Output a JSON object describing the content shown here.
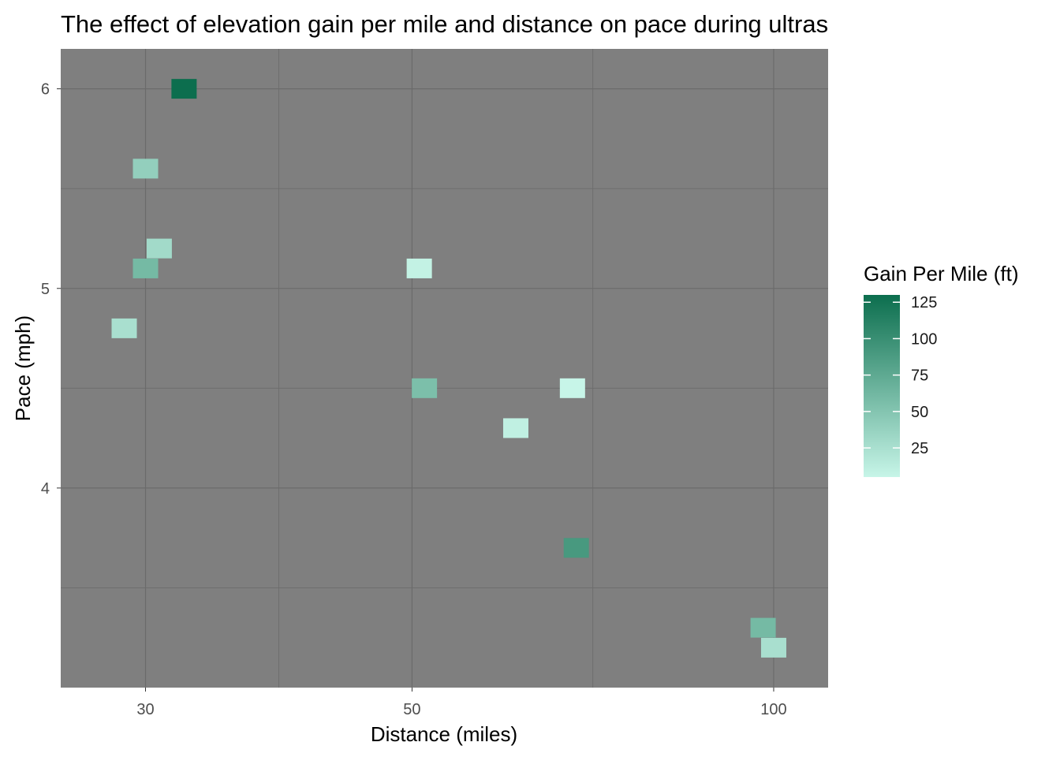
{
  "chart_data": {
    "type": "heatmap",
    "title": "The effect of elevation gain per mile and distance on pace during ultras",
    "xlabel": "Distance (miles)",
    "ylabel": "Pace (mph)",
    "x_scale": "log",
    "xlim": [
      25.5,
      111
    ],
    "ylim": [
      3.0,
      6.2
    ],
    "x_ticks": [
      30,
      50,
      100
    ],
    "x_tick_labels": [
      "30",
      "50",
      "100"
    ],
    "y_ticks": [
      4,
      5,
      6
    ],
    "y_tick_labels": [
      "4",
      "5",
      "6"
    ],
    "grid": true,
    "panel_background": "#7f7f7f",
    "legend": {
      "title": "Gain Per Mile (ft)",
      "position": "right",
      "range": [
        5,
        130
      ],
      "breaks": [
        25,
        50,
        75,
        100,
        125
      ],
      "labels": [
        "25",
        "50",
        "75",
        "100",
        "125"
      ],
      "color_low": "#c7f5e8",
      "color_high": "#0c6e4e"
    },
    "points": [
      {
        "x": 28.8,
        "y": 4.8,
        "gain": 25
      },
      {
        "x": 30.0,
        "y": 5.6,
        "gain": 40
      },
      {
        "x": 30.0,
        "y": 5.1,
        "gain": 60
      },
      {
        "x": 30.8,
        "y": 5.2,
        "gain": 30
      },
      {
        "x": 32.3,
        "y": 6.0,
        "gain": 130
      },
      {
        "x": 50.7,
        "y": 5.1,
        "gain": 8
      },
      {
        "x": 51.2,
        "y": 4.5,
        "gain": 55
      },
      {
        "x": 61.0,
        "y": 4.3,
        "gain": 10
      },
      {
        "x": 68.0,
        "y": 4.5,
        "gain": 5
      },
      {
        "x": 68.5,
        "y": 3.7,
        "gain": 90
      },
      {
        "x": 98.0,
        "y": 3.3,
        "gain": 60
      },
      {
        "x": 100.0,
        "y": 3.2,
        "gain": 25
      }
    ]
  }
}
